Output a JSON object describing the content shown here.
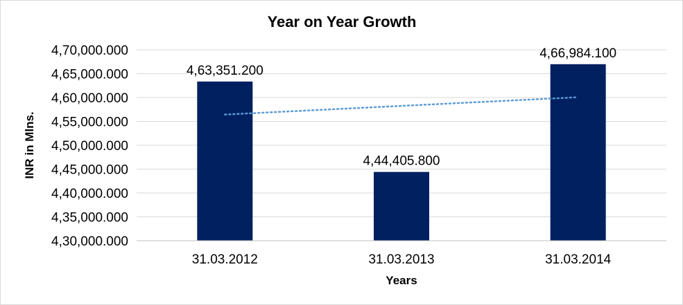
{
  "chart_data": {
    "type": "bar",
    "title": "Year on Year Growth",
    "xlabel": "Years",
    "ylabel": "INR in Mlns.",
    "categories": [
      "31.03.2012",
      "31.03.2013",
      "31.03.2014"
    ],
    "values": [
      463351.2,
      444405.8,
      466984.1
    ],
    "value_labels": [
      "4,63,351.200",
      "4,44,405.800",
      "4,66,984.100"
    ],
    "ylim": [
      430000,
      470000
    ],
    "yticks": [
      430000,
      435000,
      440000,
      445000,
      450000,
      455000,
      460000,
      465000,
      470000
    ],
    "ytick_labels": [
      "4,30,000.000",
      "4,35,000.000",
      "4,40,000.000",
      "4,45,000.000",
      "4,50,000.000",
      "4,55,000.000",
      "4,60,000.000",
      "4,65,000.000",
      "4,70,000.000"
    ],
    "grid": true,
    "legend": "none",
    "trendline": "linear",
    "colors": {
      "bar": "#002060",
      "trendline": "#5b9bd5",
      "gridline": "#d9d9d9",
      "axis": "#bfbfbf"
    }
  }
}
